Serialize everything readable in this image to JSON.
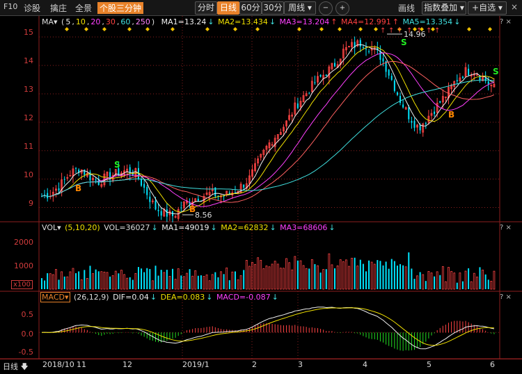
{
  "toolbar": {
    "f10": "F10",
    "diagnose": "诊股",
    "dealer": "擒庄",
    "overview": "全景",
    "three_min": "个股三分钟",
    "periods": [
      "分时",
      "日线",
      "60分",
      "30分",
      "周线 ▾"
    ],
    "active_period": "日线",
    "line_label": "画线",
    "index_overlay": "指数叠加 ▾",
    "add_watch": "+自选 ▾"
  },
  "price_panel": {
    "ma_label": "MA▾",
    "ma_params": [
      "5",
      "10",
      "20",
      "30",
      "60",
      "250"
    ],
    "ma_values": [
      {
        "label": "MA1=13.24",
        "color": "#f0f0f0"
      },
      {
        "label": "MA2=13.434",
        "color": "#f0e000"
      },
      {
        "label": "MA3=13.204",
        "color": "#ff40ff"
      },
      {
        "label": "MA4=12.991",
        "color": "#ff4040"
      },
      {
        "label": "MA5=13.354",
        "color": "#40e0e0"
      }
    ],
    "y_ticks": [
      "15",
      "14",
      "13",
      "12",
      "11",
      "10",
      "9"
    ],
    "high_label": "14.96",
    "low_label": "8.56",
    "buy_mark": "B",
    "sell_mark": "S"
  },
  "vol_panel": {
    "title": "VOL▾",
    "params": "(5,10,20)",
    "vol": "VOL=36027",
    "ma1": "MA1=49019",
    "ma2": "MA2=62832",
    "ma3": "MA3=68606",
    "y_ticks": [
      "2000",
      "1000"
    ],
    "unit": "x100"
  },
  "macd_panel": {
    "title": "MACD▾",
    "params": "(26,12,9)",
    "dif": "DIF=0.04",
    "dea": "DEA=0.083",
    "macd": "MACD=-0.087",
    "y_ticks": [
      "0.5",
      "0.0",
      "-0.5"
    ]
  },
  "panel_controls": "? ×",
  "bottom": {
    "period_toggle": "日线",
    "dates": [
      "2018/10",
      "11",
      "12",
      "2019/1",
      "2",
      "3",
      "4",
      "5",
      "6"
    ]
  },
  "colors": {
    "up": "#ff4444",
    "down": "#00e5ff",
    "grid": "#8b1e1e",
    "accent": "#e8822a"
  },
  "chart_data": {
    "type": "candlestick",
    "x": [
      "2018/10",
      "11",
      "12",
      "2019/1",
      "2",
      "3",
      "4",
      "5",
      "6"
    ],
    "ylim": [
      8.5,
      15.2
    ],
    "price_high": 14.96,
    "price_low": 8.56,
    "close_series_approx": [
      9.4,
      9.5,
      9.8,
      10.2,
      10.4,
      10.1,
      9.9,
      10.1,
      10.2,
      10.3,
      10.2,
      9.6,
      9.0,
      8.8,
      8.7,
      9.1,
      9.3,
      9.4,
      9.5,
      9.4,
      9.5,
      9.7,
      10.0,
      10.6,
      11.2,
      11.6,
      12.0,
      12.6,
      13.0,
      13.4,
      13.7,
      14.0,
      14.5,
      14.7,
      14.8,
      14.6,
      14.3,
      13.6,
      12.8,
      12.2,
      11.8,
      12.2,
      12.6,
      13.0,
      13.5,
      13.8,
      13.8,
      13.5,
      13.2
    ],
    "macd_ylim": [
      -0.7,
      0.75
    ]
  }
}
